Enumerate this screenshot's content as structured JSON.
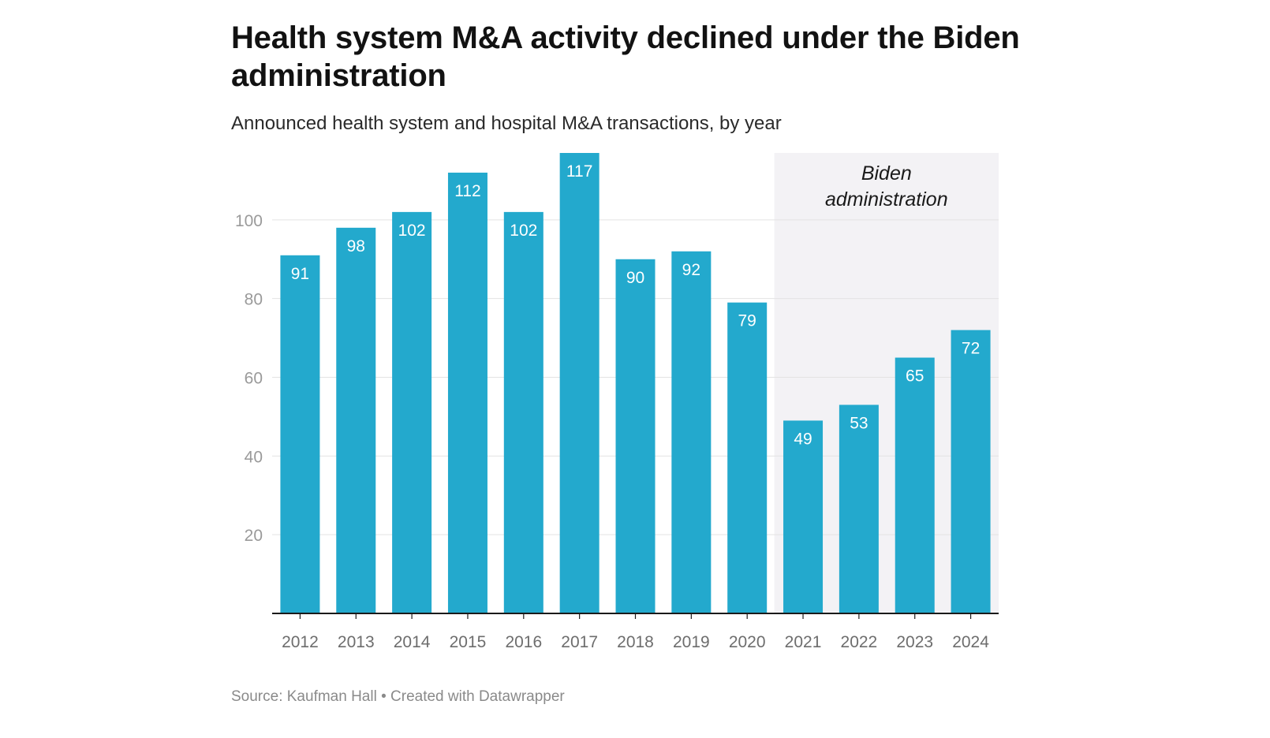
{
  "header": {
    "title": "Health system M&A activity declined under the Biden administration",
    "subtitle": "Announced health system and hospital M&A transactions, by year"
  },
  "footer": {
    "source": "Source: Kaufman Hall • Created with Datawrapper"
  },
  "colors": {
    "bar": "#23a9cd",
    "highlight_band": "#f3f2f5",
    "gridline": "#e3e3e3",
    "axis": "#1a1a1a"
  },
  "chart_data": {
    "type": "bar",
    "title": "Health system M&A activity declined under the Biden administration",
    "subtitle": "Announced health system and hospital M&A transactions, by year",
    "xlabel": "",
    "ylabel": "",
    "categories": [
      "2012",
      "2013",
      "2014",
      "2015",
      "2016",
      "2017",
      "2018",
      "2019",
      "2020",
      "2021",
      "2022",
      "2023",
      "2024"
    ],
    "values": [
      91,
      98,
      102,
      112,
      102,
      117,
      90,
      92,
      79,
      49,
      53,
      65,
      72
    ],
    "ylim": [
      0,
      117
    ],
    "yticks": [
      20,
      40,
      60,
      80,
      100
    ],
    "grid": true,
    "highlight": {
      "from": "2021",
      "to": "2024",
      "label_lines": [
        "Biden",
        "administration"
      ]
    }
  }
}
